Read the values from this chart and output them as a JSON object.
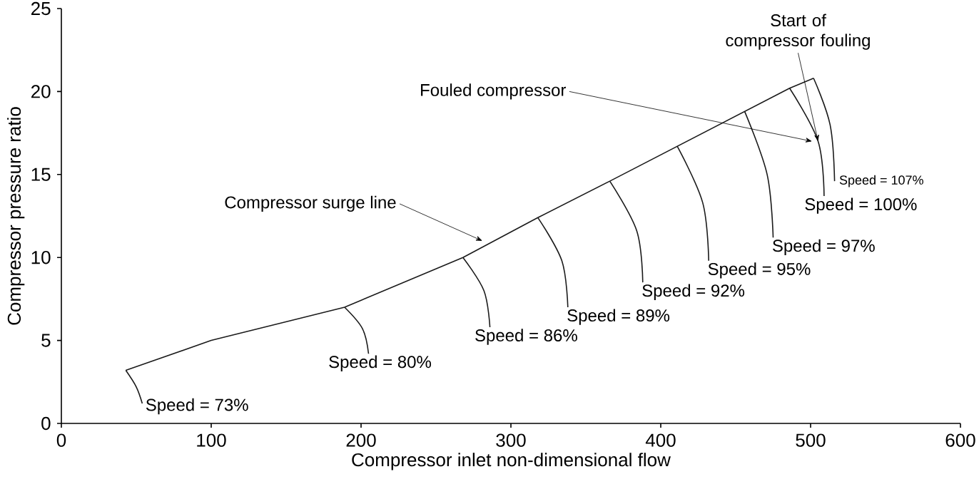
{
  "chart_data": {
    "type": "line",
    "xlabel": "Compressor inlet non-dimensional flow",
    "ylabel": "Compressor pressure ratio",
    "xlim": [
      0,
      600
    ],
    "ylim": [
      0,
      25
    ],
    "xticks": [
      0,
      100,
      200,
      300,
      400,
      500,
      600
    ],
    "yticks": [
      0,
      5,
      10,
      15,
      20,
      25
    ],
    "grid": false,
    "legend": false,
    "marker": "none",
    "line_style": "solid",
    "series": [
      {
        "color": "#1a1a1a",
        "x": [
          43,
          100,
          189,
          268,
          318,
          366,
          411,
          456,
          486,
          502
        ],
        "values": [
          3.2,
          5.0,
          7.0,
          10.0,
          12.4,
          14.6,
          16.7,
          18.8,
          20.2,
          20.8
        ]
      },
      {
        "name": "Speed = 73%",
        "color": "#1a1a1a",
        "x": [
          43,
          50,
          54
        ],
        "values": [
          3.2,
          2.2,
          1.2
        ]
      },
      {
        "name": "Speed = 80%",
        "color": "#1a1a1a",
        "x": [
          189,
          201,
          205
        ],
        "values": [
          7.0,
          5.7,
          4.2
        ]
      },
      {
        "name": "Speed = 86%",
        "color": "#1a1a1a",
        "x": [
          268,
          282,
          286
        ],
        "values": [
          10.0,
          8.0,
          5.8
        ]
      },
      {
        "name": "Speed = 89%",
        "color": "#1a1a1a",
        "x": [
          318,
          334,
          338
        ],
        "values": [
          12.4,
          9.8,
          7.0
        ]
      },
      {
        "name": "Speed = 92%",
        "color": "#1a1a1a",
        "x": [
          366,
          384,
          388
        ],
        "values": [
          14.6,
          11.6,
          8.5
        ]
      },
      {
        "name": "Speed = 95%",
        "color": "#1a1a1a",
        "x": [
          411,
          428,
          432
        ],
        "values": [
          16.7,
          13.3,
          9.8
        ]
      },
      {
        "name": "Speed = 97%",
        "color": "#1a1a1a",
        "x": [
          456,
          471,
          475
        ],
        "values": [
          18.8,
          15.0,
          11.2
        ]
      },
      {
        "name": "Speed = 100%",
        "color": "#1a1a1a",
        "x": [
          486,
          505,
          509
        ],
        "values": [
          20.2,
          17.0,
          13.7
        ]
      },
      {
        "name": "Speed = 107%",
        "color": "#1a1a1a",
        "x": [
          502,
          513,
          516
        ],
        "values": [
          20.8,
          18.0,
          14.6
        ]
      }
    ],
    "annotations": [
      {
        "text": "Compressor surge line",
        "x": 281,
        "y": 11.0
      },
      "Fouled compressor",
      {
        "text": "Start of compressor fouling",
        "x": 505,
        "y": 17.0
      }
    ]
  }
}
